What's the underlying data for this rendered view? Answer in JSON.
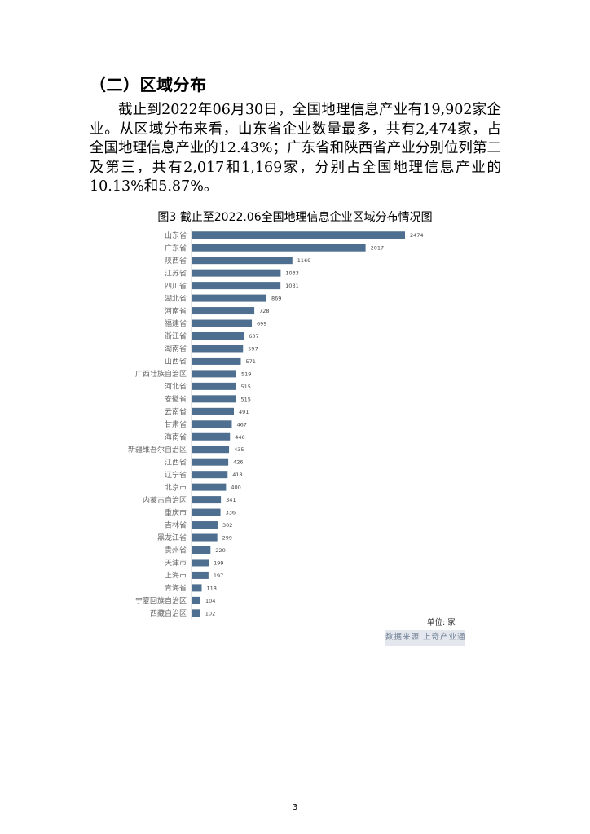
{
  "section": {
    "heading": "（二）区域分布"
  },
  "paragraph": "截止到2022年06月30日，全国地理信息产业有19,902家企业。从区域分布来看，山东省企业数量最多，共有2,474家，占全国地理信息产业的12.43%；广东省和陕西省产业分别位列第二及第三，共有2,017和1,169家，分别占全国地理信息产业的10.13%和5.87%。",
  "figure": {
    "caption": "图3 截止至2022.06全国地理信息企业区域分布情况图",
    "unit": "单位: 家",
    "source": "数据来源 上奇产业通"
  },
  "chart_data": {
    "type": "bar",
    "orientation": "horizontal",
    "bar_color": "#4e6f8f",
    "categories": [
      "山东省",
      "广东省",
      "陕西省",
      "江苏省",
      "四川省",
      "湖北省",
      "河南省",
      "福建省",
      "浙江省",
      "湖南省",
      "山西省",
      "广西壮族自治区",
      "河北省",
      "安徽省",
      "云南省",
      "甘肃省",
      "海南省",
      "新疆维吾尔自治区",
      "江西省",
      "辽宁省",
      "北京市",
      "内蒙古自治区",
      "重庆市",
      "吉林省",
      "黑龙江省",
      "贵州省",
      "天津市",
      "上海市",
      "青海省",
      "宁夏回族自治区",
      "西藏自治区"
    ],
    "values": [
      2474,
      2017,
      1169,
      1033,
      1031,
      869,
      728,
      699,
      607,
      597,
      571,
      519,
      515,
      515,
      491,
      467,
      446,
      435,
      426,
      418,
      400,
      341,
      336,
      302,
      299,
      220,
      199,
      197,
      118,
      104,
      102
    ],
    "title": "",
    "xlabel": "",
    "ylabel": "",
    "grid": false,
    "legend": false,
    "data_labels": true
  },
  "page_number": "3"
}
